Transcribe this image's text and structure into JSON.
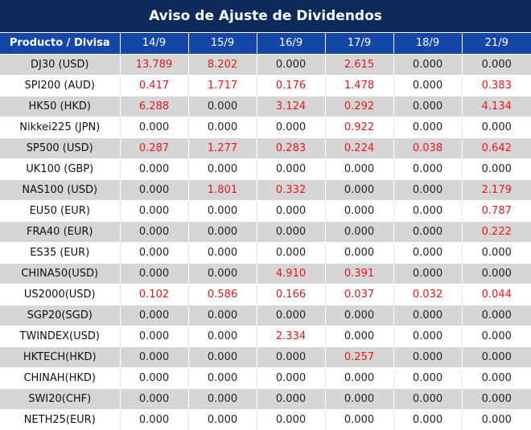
{
  "title": "Aviso de Ajuste de Dividendos",
  "colors": {
    "title_bg": "#0d2a5c",
    "header_bg": "#1547a8",
    "positive": "#e8161b",
    "shade": "#d6d6d6"
  },
  "headers": [
    "Producto / Divisa",
    "14/9",
    "15/9",
    "16/9",
    "17/9",
    "18/9",
    "21/9"
  ],
  "rows": [
    {
      "product": "DJ30 (USD)",
      "values": [
        "13.789",
        "8.202",
        "0.000",
        "2.615",
        "0.000",
        "0.000"
      ]
    },
    {
      "product": "SPI200 (AUD)",
      "values": [
        "0.417",
        "1.717",
        "0.176",
        "1.478",
        "0.000",
        "0.383"
      ]
    },
    {
      "product": "HK50 (HKD)",
      "values": [
        "6.288",
        "0.000",
        "3.124",
        "0.292",
        "0.000",
        "4.134"
      ]
    },
    {
      "product": "Nikkei225 (JPN)",
      "values": [
        "0.000",
        "0.000",
        "0.000",
        "0.922",
        "0.000",
        "0.000"
      ]
    },
    {
      "product": "SP500 (USD)",
      "values": [
        "0.287",
        "1.277",
        "0.283",
        "0.224",
        "0.038",
        "0.642"
      ]
    },
    {
      "product": "UK100 (GBP)",
      "values": [
        "0.000",
        "0.000",
        "0.000",
        "0.000",
        "0.000",
        "0.000"
      ]
    },
    {
      "product": "NAS100 (USD)",
      "values": [
        "0.000",
        "1.801",
        "0.332",
        "0.000",
        "0.000",
        "2.179"
      ]
    },
    {
      "product": "EU50 (EUR)",
      "values": [
        "0.000",
        "0.000",
        "0.000",
        "0.000",
        "0.000",
        "0.787"
      ]
    },
    {
      "product": "FRA40 (EUR)",
      "values": [
        "0.000",
        "0.000",
        "0.000",
        "0.000",
        "0.000",
        "0.222"
      ]
    },
    {
      "product": "ES35 (EUR)",
      "values": [
        "0.000",
        "0.000",
        "0.000",
        "0.000",
        "0.000",
        "0.000"
      ]
    },
    {
      "product": "CHINA50(USD)",
      "values": [
        "0.000",
        "0.000",
        "4.910",
        "0.391",
        "0.000",
        "0.000"
      ]
    },
    {
      "product": "US2000(USD)",
      "values": [
        "0.102",
        "0.586",
        "0.166",
        "0.037",
        "0.032",
        "0.044"
      ]
    },
    {
      "product": "SGP20(SGD)",
      "values": [
        "0.000",
        "0.000",
        "0.000",
        "0.000",
        "0.000",
        "0.000"
      ]
    },
    {
      "product": "TWINDEX(USD)",
      "values": [
        "0.000",
        "0.000",
        "2.334",
        "0.000",
        "0.000",
        "0.000"
      ]
    },
    {
      "product": "HKTECH(HKD)",
      "values": [
        "0.000",
        "0.000",
        "0.000",
        "0.257",
        "0.000",
        "0.000"
      ]
    },
    {
      "product": "CHINAH(HKD)",
      "values": [
        "0.000",
        "0.000",
        "0.000",
        "0.000",
        "0.000",
        "0.000"
      ]
    },
    {
      "product": "SWI20(CHF)",
      "values": [
        "0.000",
        "0.000",
        "0.000",
        "0.000",
        "0.000",
        "0.000"
      ]
    },
    {
      "product": "NETH25(EUR)",
      "values": [
        "0.000",
        "0.000",
        "0.000",
        "0.000",
        "0.000",
        "0.000"
      ]
    }
  ]
}
